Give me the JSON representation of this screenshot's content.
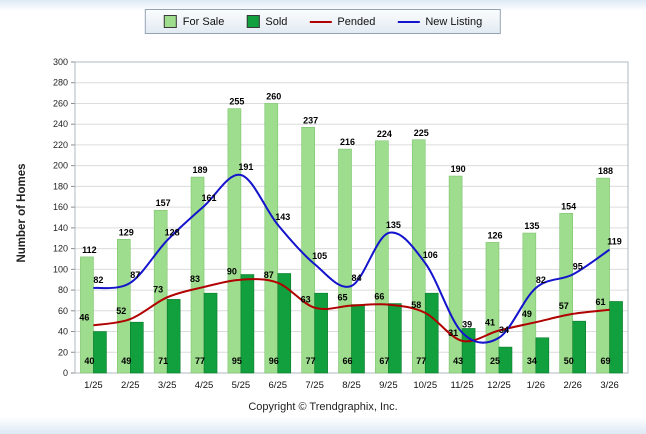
{
  "legend": [
    {
      "label": "For Sale",
      "type": "swatch",
      "color": "#9edc8e"
    },
    {
      "label": "Sold",
      "type": "swatch",
      "color": "#12a03e"
    },
    {
      "label": "Pended",
      "type": "line",
      "color": "#b00000"
    },
    {
      "label": "New Listing",
      "type": "line",
      "color": "#1414cc"
    }
  ],
  "footer": "Copyright © Trendgraphix, Inc.",
  "chart_data": {
    "type": "bar",
    "subtype": "grouped bars with smoothed overlay lines",
    "title": "",
    "xlabel": "",
    "ylabel": "Number of Homes",
    "ylim": [
      0,
      300
    ],
    "ytick_step": 20,
    "grid": true,
    "legend_position": "top",
    "categories": [
      "1/25",
      "2/25",
      "3/25",
      "4/25",
      "5/25",
      "6/25",
      "7/25",
      "8/25",
      "9/25",
      "10/25",
      "11/25",
      "12/25",
      "1/26",
      "2/26",
      "3/26"
    ],
    "series": [
      {
        "name": "For Sale",
        "type": "bar",
        "color": "#9edc8e",
        "border": "#7cc46d",
        "values": [
          112,
          129,
          157,
          189,
          255,
          260,
          237,
          216,
          224,
          225,
          190,
          126,
          135,
          154,
          188
        ]
      },
      {
        "name": "Sold",
        "type": "bar",
        "color": "#12a03e",
        "border": "#0b7a2d",
        "values": [
          40,
          49,
          71,
          77,
          95,
          96,
          77,
          66,
          67,
          77,
          43,
          25,
          34,
          50,
          69
        ]
      },
      {
        "name": "Pended",
        "type": "line",
        "color": "#b00000",
        "values": [
          46,
          52,
          73,
          83,
          90,
          87,
          63,
          65,
          66,
          58,
          31,
          41,
          49,
          57,
          61
        ]
      },
      {
        "name": "New Listing",
        "type": "line",
        "color": "#1414cc",
        "values": [
          82,
          87,
          128,
          161,
          191,
          143,
          105,
          84,
          135,
          106,
          39,
          34,
          82,
          95,
          119
        ]
      }
    ]
  }
}
